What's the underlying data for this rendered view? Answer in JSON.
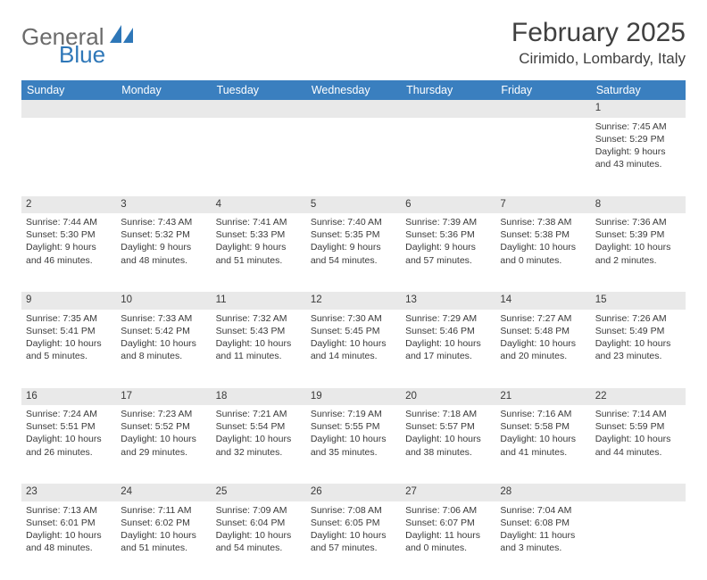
{
  "logo": {
    "text1": "General",
    "text2": "Blue"
  },
  "title": "February 2025",
  "location": "Cirimido, Lombardy, Italy",
  "day_headers": [
    "Sunday",
    "Monday",
    "Tuesday",
    "Wednesday",
    "Thursday",
    "Friday",
    "Saturday"
  ],
  "colors": {
    "header_bg": "#3a7fbf",
    "header_text": "#ffffff",
    "daynum_bg": "#e9e9e9",
    "text": "#3a3a3a",
    "logo_gray": "#6b6b6b",
    "logo_blue": "#2e77b8"
  },
  "weeks": [
    [
      null,
      null,
      null,
      null,
      null,
      null,
      {
        "n": "1",
        "sr": "Sunrise: 7:45 AM",
        "ss": "Sunset: 5:29 PM",
        "dl": "Daylight: 9 hours and 43 minutes."
      }
    ],
    [
      {
        "n": "2",
        "sr": "Sunrise: 7:44 AM",
        "ss": "Sunset: 5:30 PM",
        "dl": "Daylight: 9 hours and 46 minutes."
      },
      {
        "n": "3",
        "sr": "Sunrise: 7:43 AM",
        "ss": "Sunset: 5:32 PM",
        "dl": "Daylight: 9 hours and 48 minutes."
      },
      {
        "n": "4",
        "sr": "Sunrise: 7:41 AM",
        "ss": "Sunset: 5:33 PM",
        "dl": "Daylight: 9 hours and 51 minutes."
      },
      {
        "n": "5",
        "sr": "Sunrise: 7:40 AM",
        "ss": "Sunset: 5:35 PM",
        "dl": "Daylight: 9 hours and 54 minutes."
      },
      {
        "n": "6",
        "sr": "Sunrise: 7:39 AM",
        "ss": "Sunset: 5:36 PM",
        "dl": "Daylight: 9 hours and 57 minutes."
      },
      {
        "n": "7",
        "sr": "Sunrise: 7:38 AM",
        "ss": "Sunset: 5:38 PM",
        "dl": "Daylight: 10 hours and 0 minutes."
      },
      {
        "n": "8",
        "sr": "Sunrise: 7:36 AM",
        "ss": "Sunset: 5:39 PM",
        "dl": "Daylight: 10 hours and 2 minutes."
      }
    ],
    [
      {
        "n": "9",
        "sr": "Sunrise: 7:35 AM",
        "ss": "Sunset: 5:41 PM",
        "dl": "Daylight: 10 hours and 5 minutes."
      },
      {
        "n": "10",
        "sr": "Sunrise: 7:33 AM",
        "ss": "Sunset: 5:42 PM",
        "dl": "Daylight: 10 hours and 8 minutes."
      },
      {
        "n": "11",
        "sr": "Sunrise: 7:32 AM",
        "ss": "Sunset: 5:43 PM",
        "dl": "Daylight: 10 hours and 11 minutes."
      },
      {
        "n": "12",
        "sr": "Sunrise: 7:30 AM",
        "ss": "Sunset: 5:45 PM",
        "dl": "Daylight: 10 hours and 14 minutes."
      },
      {
        "n": "13",
        "sr": "Sunrise: 7:29 AM",
        "ss": "Sunset: 5:46 PM",
        "dl": "Daylight: 10 hours and 17 minutes."
      },
      {
        "n": "14",
        "sr": "Sunrise: 7:27 AM",
        "ss": "Sunset: 5:48 PM",
        "dl": "Daylight: 10 hours and 20 minutes."
      },
      {
        "n": "15",
        "sr": "Sunrise: 7:26 AM",
        "ss": "Sunset: 5:49 PM",
        "dl": "Daylight: 10 hours and 23 minutes."
      }
    ],
    [
      {
        "n": "16",
        "sr": "Sunrise: 7:24 AM",
        "ss": "Sunset: 5:51 PM",
        "dl": "Daylight: 10 hours and 26 minutes."
      },
      {
        "n": "17",
        "sr": "Sunrise: 7:23 AM",
        "ss": "Sunset: 5:52 PM",
        "dl": "Daylight: 10 hours and 29 minutes."
      },
      {
        "n": "18",
        "sr": "Sunrise: 7:21 AM",
        "ss": "Sunset: 5:54 PM",
        "dl": "Daylight: 10 hours and 32 minutes."
      },
      {
        "n": "19",
        "sr": "Sunrise: 7:19 AM",
        "ss": "Sunset: 5:55 PM",
        "dl": "Daylight: 10 hours and 35 minutes."
      },
      {
        "n": "20",
        "sr": "Sunrise: 7:18 AM",
        "ss": "Sunset: 5:57 PM",
        "dl": "Daylight: 10 hours and 38 minutes."
      },
      {
        "n": "21",
        "sr": "Sunrise: 7:16 AM",
        "ss": "Sunset: 5:58 PM",
        "dl": "Daylight: 10 hours and 41 minutes."
      },
      {
        "n": "22",
        "sr": "Sunrise: 7:14 AM",
        "ss": "Sunset: 5:59 PM",
        "dl": "Daylight: 10 hours and 44 minutes."
      }
    ],
    [
      {
        "n": "23",
        "sr": "Sunrise: 7:13 AM",
        "ss": "Sunset: 6:01 PM",
        "dl": "Daylight: 10 hours and 48 minutes."
      },
      {
        "n": "24",
        "sr": "Sunrise: 7:11 AM",
        "ss": "Sunset: 6:02 PM",
        "dl": "Daylight: 10 hours and 51 minutes."
      },
      {
        "n": "25",
        "sr": "Sunrise: 7:09 AM",
        "ss": "Sunset: 6:04 PM",
        "dl": "Daylight: 10 hours and 54 minutes."
      },
      {
        "n": "26",
        "sr": "Sunrise: 7:08 AM",
        "ss": "Sunset: 6:05 PM",
        "dl": "Daylight: 10 hours and 57 minutes."
      },
      {
        "n": "27",
        "sr": "Sunrise: 7:06 AM",
        "ss": "Sunset: 6:07 PM",
        "dl": "Daylight: 11 hours and 0 minutes."
      },
      {
        "n": "28",
        "sr": "Sunrise: 7:04 AM",
        "ss": "Sunset: 6:08 PM",
        "dl": "Daylight: 11 hours and 3 minutes."
      },
      null
    ]
  ]
}
